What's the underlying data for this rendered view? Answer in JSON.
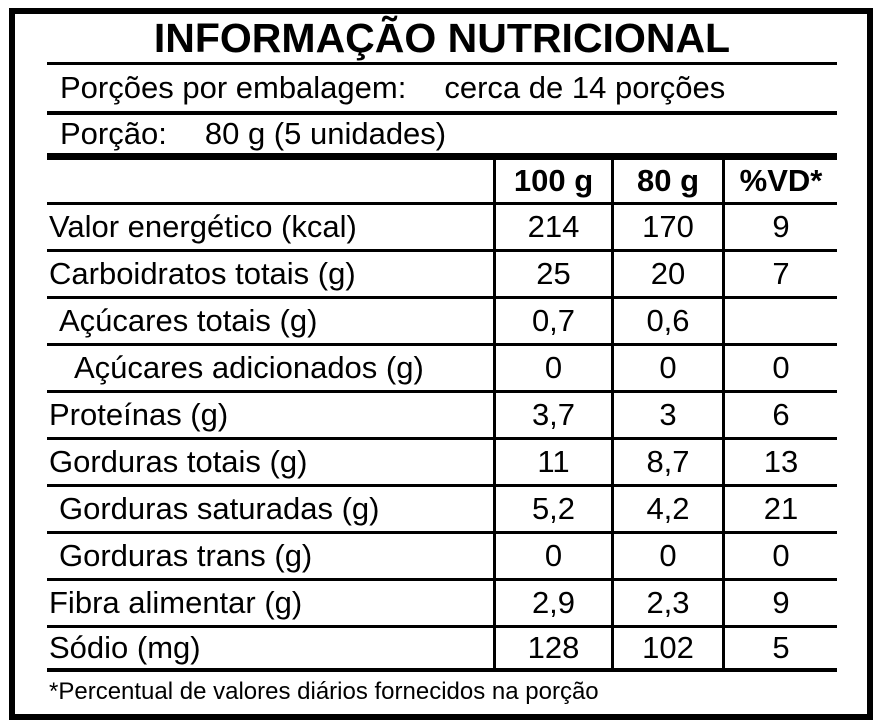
{
  "title": "INFORMAÇÃO NUTRICIONAL",
  "meta": {
    "servings_label": "Porções por embalagem:",
    "servings_value": "cerca de 14 porções",
    "portion_label": "Porção:",
    "portion_value": "80 g (5 unidades)"
  },
  "chart_data": {
    "type": "table",
    "title": "INFORMAÇÃO NUTRICIONAL",
    "columns": [
      "",
      "100 g",
      "80 g",
      "%VD*"
    ],
    "rows": [
      {
        "label": "Valor energético (kcal)",
        "per_100g": "214",
        "per_80g": "170",
        "vd_percent": "9",
        "indent": 0
      },
      {
        "label": "Carboidratos totais (g)",
        "per_100g": "25",
        "per_80g": "20",
        "vd_percent": "7",
        "indent": 0
      },
      {
        "label": "Açúcares totais (g)",
        "per_100g": "0,7",
        "per_80g": "0,6",
        "vd_percent": "",
        "indent": 1
      },
      {
        "label": "Açúcares adicionados (g)",
        "per_100g": "0",
        "per_80g": "0",
        "vd_percent": "0",
        "indent": 2
      },
      {
        "label": "Proteínas (g)",
        "per_100g": "3,7",
        "per_80g": "3",
        "vd_percent": "6",
        "indent": 0
      },
      {
        "label": "Gorduras totais (g)",
        "per_100g": "11",
        "per_80g": "8,7",
        "vd_percent": "13",
        "indent": 0
      },
      {
        "label": "Gorduras saturadas (g)",
        "per_100g": "5,2",
        "per_80g": "4,2",
        "vd_percent": "21",
        "indent": 1
      },
      {
        "label": "Gorduras trans (g)",
        "per_100g": "0",
        "per_80g": "0",
        "vd_percent": "0",
        "indent": 1
      },
      {
        "label": "Fibra alimentar (g)",
        "per_100g": "2,9",
        "per_80g": "2,3",
        "vd_percent": "9",
        "indent": 0
      },
      {
        "label": "Sódio (mg)",
        "per_100g": "128",
        "per_80g": "102",
        "vd_percent": "5",
        "indent": 0
      }
    ]
  },
  "footnote": "*Percentual de valores diários fornecidos na porção",
  "colors": {
    "ink": "#000000",
    "background": "#ffffff"
  }
}
